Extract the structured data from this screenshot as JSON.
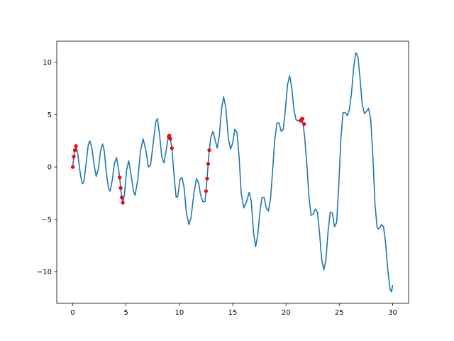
{
  "chart_data": {
    "type": "line",
    "title": "",
    "xlabel": "",
    "ylabel": "",
    "xlim": [
      -1.5,
      31.5
    ],
    "ylim": [
      -13,
      12
    ],
    "x_ticks": [
      0,
      5,
      10,
      15,
      20,
      25,
      30
    ],
    "y_ticks": [
      -10,
      -5,
      0,
      5,
      10
    ],
    "x_tick_labels": [
      "0",
      "5",
      "10",
      "15",
      "20",
      "25",
      "30"
    ],
    "y_tick_labels": [
      "−10",
      "−5",
      "0",
      "5",
      "10"
    ],
    "grid": false,
    "legend": "none",
    "series": [
      {
        "color": "#1f77b4",
        "points": [
          [
            0.0,
            0.0
          ],
          [
            0.1,
            1.0
          ],
          [
            0.2,
            1.6
          ],
          [
            0.3,
            2.0
          ],
          [
            0.45,
            1.4
          ],
          [
            0.6,
            0.2
          ],
          [
            0.75,
            -0.9
          ],
          [
            0.9,
            -1.6
          ],
          [
            1.05,
            -1.4
          ],
          [
            1.25,
            0.3
          ],
          [
            1.45,
            2.1
          ],
          [
            1.6,
            2.5
          ],
          [
            1.8,
            1.8
          ],
          [
            2.0,
            0.2
          ],
          [
            2.2,
            -0.9
          ],
          [
            2.4,
            -0.2
          ],
          [
            2.6,
            1.5
          ],
          [
            2.8,
            2.2
          ],
          [
            2.95,
            1.6
          ],
          [
            3.15,
            -0.5
          ],
          [
            3.35,
            -2.0
          ],
          [
            3.5,
            -2.3
          ],
          [
            3.7,
            -1.3
          ],
          [
            3.9,
            0.3
          ],
          [
            4.1,
            0.9
          ],
          [
            4.3,
            -0.2
          ],
          [
            4.4,
            -1.0
          ],
          [
            4.5,
            -2.0
          ],
          [
            4.6,
            -2.9
          ],
          [
            4.7,
            -3.4
          ],
          [
            4.85,
            -2.6
          ],
          [
            5.05,
            -0.3
          ],
          [
            5.25,
            0.6
          ],
          [
            5.45,
            -0.6
          ],
          [
            5.7,
            -2.3
          ],
          [
            5.85,
            -2.7
          ],
          [
            6.1,
            -1.2
          ],
          [
            6.35,
            1.5
          ],
          [
            6.6,
            2.7
          ],
          [
            6.85,
            1.6
          ],
          [
            7.1,
            0.0
          ],
          [
            7.3,
            0.2
          ],
          [
            7.55,
            2.3
          ],
          [
            7.8,
            4.4
          ],
          [
            7.95,
            4.6
          ],
          [
            8.15,
            3.0
          ],
          [
            8.35,
            1.0
          ],
          [
            8.55,
            0.4
          ],
          [
            8.75,
            1.5
          ],
          [
            8.95,
            2.8
          ],
          [
            9.05,
            3.0
          ],
          [
            9.15,
            2.7
          ],
          [
            9.3,
            1.8
          ],
          [
            9.5,
            -0.8
          ],
          [
            9.7,
            -2.9
          ],
          [
            9.85,
            -2.8
          ],
          [
            10.05,
            -1.2
          ],
          [
            10.25,
            -1.0
          ],
          [
            10.45,
            -2.0
          ],
          [
            10.65,
            -4.3
          ],
          [
            10.9,
            -5.5
          ],
          [
            11.1,
            -4.8
          ],
          [
            11.35,
            -2.6
          ],
          [
            11.6,
            -1.1
          ],
          [
            11.8,
            -1.5
          ],
          [
            12.0,
            -2.7
          ],
          [
            12.2,
            -3.3
          ],
          [
            12.4,
            -3.3
          ],
          [
            12.5,
            -2.3
          ],
          [
            12.6,
            -1.1
          ],
          [
            12.7,
            0.3
          ],
          [
            12.8,
            1.6
          ],
          [
            12.95,
            2.8
          ],
          [
            13.15,
            3.4
          ],
          [
            13.35,
            2.6
          ],
          [
            13.55,
            1.8
          ],
          [
            13.75,
            3.0
          ],
          [
            13.95,
            5.5
          ],
          [
            14.15,
            6.7
          ],
          [
            14.35,
            5.7
          ],
          [
            14.6,
            2.7
          ],
          [
            14.8,
            1.7
          ],
          [
            15.0,
            2.3
          ],
          [
            15.2,
            3.6
          ],
          [
            15.4,
            3.3
          ],
          [
            15.6,
            1.0
          ],
          [
            15.8,
            -2.5
          ],
          [
            16.05,
            -3.9
          ],
          [
            16.3,
            -3.3
          ],
          [
            16.55,
            -2.4
          ],
          [
            16.75,
            -3.3
          ],
          [
            16.95,
            -6.2
          ],
          [
            17.15,
            -7.6
          ],
          [
            17.35,
            -6.5
          ],
          [
            17.55,
            -4.3
          ],
          [
            17.75,
            -2.9
          ],
          [
            17.95,
            -2.9
          ],
          [
            18.15,
            -3.9
          ],
          [
            18.35,
            -4.2
          ],
          [
            18.55,
            -3.0
          ],
          [
            18.75,
            -0.3
          ],
          [
            18.95,
            2.6
          ],
          [
            19.15,
            4.2
          ],
          [
            19.35,
            4.2
          ],
          [
            19.55,
            3.4
          ],
          [
            19.75,
            3.6
          ],
          [
            19.95,
            5.6
          ],
          [
            20.15,
            7.9
          ],
          [
            20.35,
            8.7
          ],
          [
            20.55,
            7.5
          ],
          [
            20.75,
            5.4
          ],
          [
            20.95,
            4.5
          ],
          [
            21.15,
            4.4
          ],
          [
            21.35,
            4.6
          ],
          [
            21.5,
            4.5
          ],
          [
            21.6,
            4.1
          ],
          [
            21.75,
            2.9
          ],
          [
            21.95,
            0.4
          ],
          [
            22.15,
            -2.8
          ],
          [
            22.35,
            -4.6
          ],
          [
            22.55,
            -4.5
          ],
          [
            22.75,
            -4.0
          ],
          [
            22.95,
            -4.3
          ],
          [
            23.15,
            -6.3
          ],
          [
            23.35,
            -8.8
          ],
          [
            23.55,
            -9.8
          ],
          [
            23.75,
            -8.8
          ],
          [
            23.95,
            -6.1
          ],
          [
            24.15,
            -4.3
          ],
          [
            24.35,
            -4.4
          ],
          [
            24.55,
            -5.7
          ],
          [
            24.75,
            -5.3
          ],
          [
            24.95,
            -1.8
          ],
          [
            25.15,
            2.8
          ],
          [
            25.35,
            5.2
          ],
          [
            25.55,
            5.2
          ],
          [
            25.75,
            4.9
          ],
          [
            25.95,
            5.5
          ],
          [
            26.15,
            7.1
          ],
          [
            26.35,
            9.5
          ],
          [
            26.55,
            10.9
          ],
          [
            26.75,
            10.5
          ],
          [
            26.95,
            8.4
          ],
          [
            27.15,
            6.0
          ],
          [
            27.35,
            5.1
          ],
          [
            27.55,
            5.3
          ],
          [
            27.75,
            5.6
          ],
          [
            27.95,
            4.5
          ],
          [
            28.15,
            1.0
          ],
          [
            28.35,
            -3.6
          ],
          [
            28.55,
            -5.8
          ],
          [
            28.75,
            -5.9
          ],
          [
            28.95,
            -5.5
          ],
          [
            29.15,
            -5.7
          ],
          [
            29.35,
            -7.3
          ],
          [
            29.55,
            -9.8
          ],
          [
            29.75,
            -11.6
          ],
          [
            29.9,
            -11.9
          ],
          [
            30.0,
            -11.3
          ]
        ]
      },
      {
        "color": "#ff0000",
        "marker": "dot",
        "points": [
          [
            0.0,
            0.0
          ],
          [
            0.1,
            1.0
          ],
          [
            0.2,
            1.6
          ],
          [
            0.3,
            2.0
          ],
          [
            4.4,
            -1.0
          ],
          [
            4.5,
            -2.0
          ],
          [
            4.6,
            -2.9
          ],
          [
            4.7,
            -3.4
          ],
          [
            9.0,
            2.9
          ],
          [
            9.05,
            3.0
          ],
          [
            9.15,
            2.7
          ],
          [
            9.3,
            1.8
          ],
          [
            12.5,
            -2.3
          ],
          [
            12.6,
            -1.1
          ],
          [
            12.7,
            0.3
          ],
          [
            12.8,
            1.6
          ],
          [
            21.4,
            4.4
          ],
          [
            21.5,
            4.6
          ],
          [
            21.55,
            4.6
          ],
          [
            21.7,
            4.1
          ]
        ]
      }
    ]
  }
}
